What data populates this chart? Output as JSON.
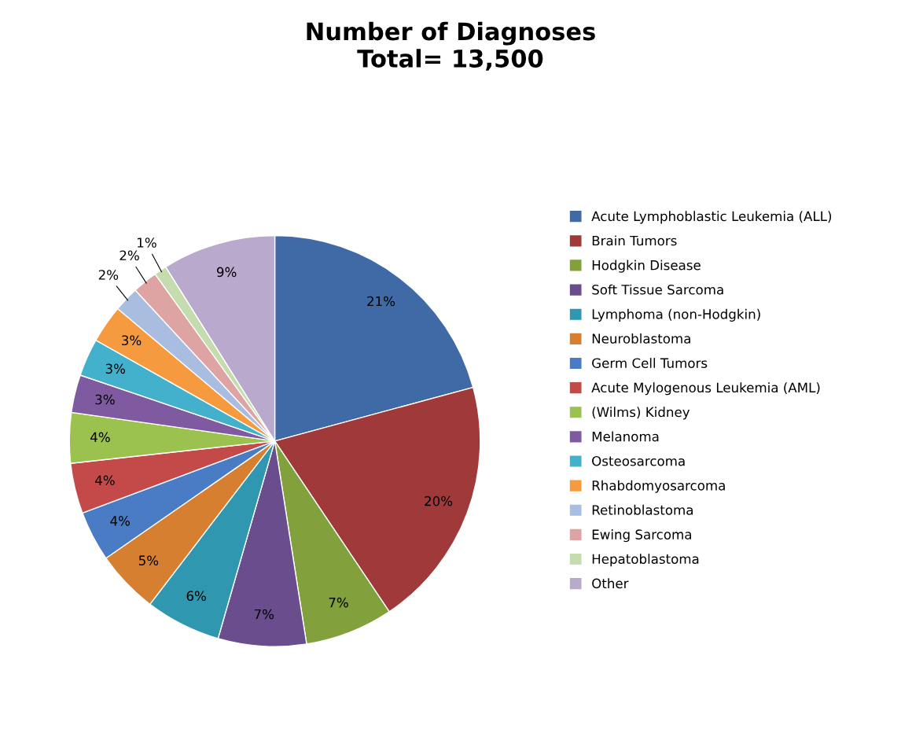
{
  "chart_data": {
    "type": "pie",
    "title": "Number of Diagnoses\nTotal= 13,500",
    "categories": [
      "Acute Lymphoblastic Leukemia (ALL)",
      "Brain Tumors",
      "Hodgkin Disease",
      "Soft Tissue Sarcoma",
      "Lymphoma (non-Hodgkin)",
      "Neuroblastoma",
      "Germ Cell Tumors",
      "Acute Mylogenous Leukemia (AML)",
      "(Wilms) Kidney",
      "Melanoma",
      "Osteosarcoma",
      "Rhabdomyosarcoma",
      "Retinoblastoma",
      "Ewing Sarcoma",
      "Hepatoblastoma",
      "Other"
    ],
    "values": [
      21,
      20,
      7,
      7,
      6,
      5,
      4,
      4,
      4,
      3,
      3,
      3,
      2,
      2,
      1,
      9
    ],
    "value_labels": [
      "21%",
      "20%",
      "7%",
      "7%",
      "6%",
      "5%",
      "4%",
      "4%",
      "4%",
      "3%",
      "3%",
      "3%",
      "2%",
      "2%",
      "1%",
      "9%"
    ],
    "colors": [
      "#3f6aa5",
      "#a0393a",
      "#82a03c",
      "#6a4d8c",
      "#2f97b0",
      "#d77f30",
      "#4a7cc6",
      "#c44a4a",
      "#9bc14f",
      "#7f5aa0",
      "#43b0cc",
      "#f59a3e",
      "#a9bde0",
      "#dea3a3",
      "#c5dcae",
      "#b9a9cc"
    ],
    "legend": "right"
  }
}
